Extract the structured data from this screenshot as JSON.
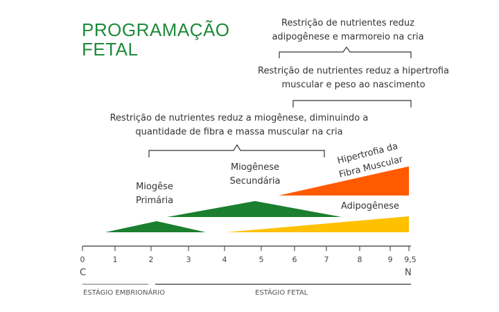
{
  "title": {
    "line1": "PROGRAMAÇÃO",
    "line2": "FETAL"
  },
  "brackets": [
    {
      "line1": "Restrição de nutrientes reduz",
      "line2": "adipogênese e marmoreio na cria"
    },
    {
      "line1": "Restrição de nutrientes reduz a hipertrofia",
      "line2": "muscular e peso ao nascimento"
    },
    {
      "line1": "Restrição de nutrientes reduz a miogênese, diminuindo a",
      "line2": "quantidade de fibra e massa muscular na cria"
    }
  ],
  "series": {
    "primary": {
      "line1": "Miogêse",
      "line2": "Primária",
      "color": "#1a7f2e"
    },
    "secondary": {
      "line1": "Miogênese",
      "line2": "Secundária",
      "color": "#1a7f2e"
    },
    "hypertrophy": {
      "line1": "Hipertrofia da",
      "line2": "Fibra Muscular",
      "color": "#ff5a00"
    },
    "adipo": {
      "label": "Adipogênese",
      "color": "#ffc000"
    }
  },
  "axis": {
    "ticks": [
      "0",
      "1",
      "2",
      "3",
      "4",
      "5",
      "6",
      "7",
      "8",
      "9",
      "9,5"
    ],
    "start_label": "C",
    "end_label": "N"
  },
  "stages": {
    "embryonic": "ESTÁGIO EMBRIONÁRIO",
    "fetal": "ESTÁGIO FETAL"
  },
  "colors": {
    "title": "#1e8a3a",
    "axis": "#555555",
    "bracket": "#333333"
  }
}
